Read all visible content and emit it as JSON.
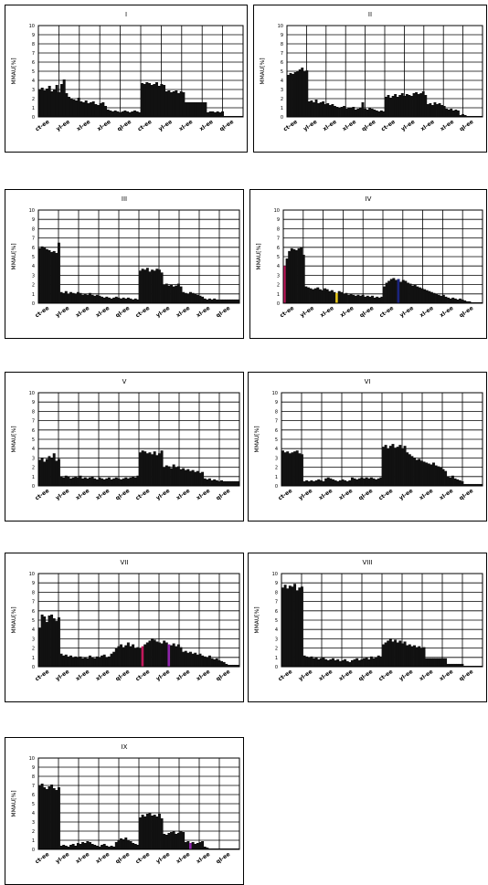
{
  "chart_data": [
    {
      "type": "bar",
      "title": "I",
      "ylabel": "MMAU[%]",
      "ylim": [
        0,
        10
      ],
      "yticks": [
        "10",
        "9",
        "8",
        "7",
        "6",
        "5",
        "4",
        "3",
        "2",
        "1",
        "0"
      ],
      "x_tick_labels": [
        "ct-ee",
        "yl-ee",
        "xl-ee",
        "xl-ee",
        "ql-ee",
        "ct-ee",
        "yl-ee",
        "xl-ee",
        "xl-ee",
        "ql-ee"
      ],
      "series": [
        {
          "values": [
            3.0,
            3.2,
            2.9,
            3.1,
            3.4,
            2.8,
            3.0,
            3.5,
            2.7,
            3.6,
            4.1,
            2.6,
            2.2,
            2.0,
            1.9,
            1.8,
            2.1,
            1.7,
            1.6,
            1.8,
            1.5,
            1.6,
            1.7,
            1.4,
            1.3,
            1.5,
            1.6,
            1.2,
            0.8,
            0.7,
            0.6,
            0.7,
            0.6,
            0.5,
            0.6,
            0.7,
            0.6,
            0.5,
            0.6,
            0.7,
            0.6,
            0.5
          ]
        },
        {
          "values": [
            3.7,
            3.6,
            3.8,
            3.7,
            3.5,
            3.6,
            3.8,
            3.4,
            3.6,
            3.5,
            2.8,
            2.9,
            2.7,
            2.8,
            2.9,
            2.6,
            2.8,
            2.7,
            1.6,
            1.6,
            1.6,
            1.6,
            1.6,
            1.6,
            1.6,
            1.6,
            1.6,
            0.5,
            0.6,
            0.6,
            0.5,
            0.6,
            0.5,
            0.6,
            0.1,
            0.1,
            0.1,
            0.1,
            0.1,
            0.1,
            0.1,
            0.1
          ]
        }
      ]
    },
    {
      "type": "bar",
      "title": "II",
      "ylabel": "MMAU[%]",
      "ylim": [
        0,
        10
      ],
      "yticks": [
        "10",
        "9",
        "8",
        "7",
        "6",
        "5",
        "4",
        "3",
        "2",
        "1",
        "0"
      ],
      "x_tick_labels": [
        "ct-ee",
        "yl-ee",
        "xl-ee",
        "xl-ee",
        "ql-ee",
        "ct-ee",
        "yl-ee",
        "xl-ee",
        "xl-ee",
        "ql-ee"
      ],
      "series": [
        {
          "values": [
            4.6,
            4.8,
            4.7,
            4.9,
            5.0,
            5.2,
            5.4,
            5.0,
            5.1,
            1.7,
            1.8,
            1.6,
            1.9,
            1.5,
            1.6,
            1.7,
            1.4,
            1.5,
            1.3,
            1.4,
            1.2,
            1.1,
            1.0,
            1.1,
            1.2,
            0.9,
            1.0,
            1.0,
            1.1,
            0.8,
            0.9,
            1.0,
            1.6,
            0.9,
            0.8,
            1.0,
            0.9,
            0.8,
            0.7,
            0.6,
            0.7,
            0.6
          ]
        },
        {
          "values": [
            2.2,
            2.4,
            2.1,
            2.3,
            2.5,
            2.2,
            2.4,
            2.6,
            2.3,
            2.5,
            2.4,
            2.3,
            2.6,
            2.7,
            2.5,
            2.6,
            2.8,
            2.4,
            1.4,
            1.5,
            1.3,
            1.6,
            1.4,
            1.5,
            1.3,
            1.2,
            0.9,
            0.8,
            0.9,
            0.7,
            0.8,
            0.7,
            0.2,
            0.3,
            0.2,
            0.1,
            0.1,
            0.1,
            0.1,
            0.1,
            0.1,
            0.1
          ]
        }
      ]
    },
    {
      "type": "bar",
      "title": "III",
      "ylabel": "MMAU[%]",
      "ylim": [
        0,
        10
      ],
      "yticks": [
        "10",
        "9",
        "8",
        "7",
        "6",
        "5",
        "4",
        "3",
        "2",
        "1",
        "0"
      ],
      "x_tick_labels": [
        "ct-ee",
        "yl-ee",
        "xl-ee",
        "xl-ee",
        "ql-ee",
        "ct-ee",
        "yl-ee",
        "xl-ee",
        "xl-ee",
        "ql-ee"
      ],
      "series": [
        {
          "values": [
            5.9,
            6.1,
            6.0,
            5.8,
            5.7,
            5.5,
            5.6,
            5.4,
            6.5,
            1.2,
            1.1,
            1.3,
            1.0,
            1.2,
            1.1,
            1.0,
            1.2,
            1.1,
            0.9,
            1.0,
            0.9,
            1.1,
            0.9,
            0.8,
            0.9,
            0.8,
            0.7,
            0.6,
            0.7,
            0.6,
            0.5,
            0.6,
            0.7,
            0.6,
            0.5,
            0.6,
            0.5,
            0.6,
            0.5,
            0.4,
            0.5,
            0.4
          ]
        },
        {
          "values": [
            3.5,
            3.7,
            3.6,
            3.8,
            3.4,
            3.6,
            3.5,
            3.7,
            3.6,
            3.3,
            2.0,
            2.1,
            1.9,
            2.0,
            1.8,
            1.9,
            2.1,
            1.8,
            1.2,
            1.1,
            1.0,
            1.2,
            1.1,
            1.0,
            0.9,
            0.8,
            0.7,
            0.5,
            0.4,
            0.5,
            0.4,
            0.5,
            0.4,
            0.4,
            0.4,
            0.4,
            0.4,
            0.4,
            0.4,
            0.4,
            0.4,
            0.4
          ]
        }
      ]
    },
    {
      "type": "bar",
      "title": "IV",
      "ylabel": "MMAU[%]",
      "ylim": [
        0,
        10
      ],
      "yticks": [
        "10",
        "9",
        "8",
        "7",
        "6",
        "5",
        "4",
        "3",
        "2",
        "1",
        "0"
      ],
      "x_tick_labels": [
        "ct-ee",
        "yl-ee",
        "xl-ee",
        "xl-ee",
        "ql-ee",
        "ct-ee",
        "yl-ee",
        "xl-ee",
        "xl-ee",
        "ql-ee"
      ],
      "series": [
        {
          "values": [
            4.0,
            4.8,
            5.6,
            5.9,
            5.8,
            5.7,
            5.9,
            6.0,
            5.2,
            1.8,
            1.7,
            1.6,
            1.5,
            1.6,
            1.7,
            1.5,
            1.4,
            1.6,
            1.5,
            1.3,
            1.4,
            1.2,
            1.1,
            1.3,
            1.2,
            1.0,
            1.1,
            0.9,
            1.0,
            0.9,
            0.8,
            0.9,
            0.8,
            0.9,
            0.7,
            0.8,
            0.7,
            0.8,
            0.6,
            0.7,
            0.6,
            0.7
          ]
        },
        {
          "values": [
            1.8,
            2.2,
            2.4,
            2.6,
            2.7,
            2.5,
            2.6,
            2.3,
            2.5,
            2.4,
            2.2,
            2.1,
            1.9,
            2.0,
            1.8,
            1.7,
            1.6,
            1.5,
            1.4,
            1.3,
            1.2,
            1.1,
            1.0,
            0.9,
            0.8,
            0.9,
            0.7,
            0.6,
            0.5,
            0.6,
            0.5,
            0.4,
            0.5,
            0.4,
            0.3,
            0.2,
            0.2,
            0.1,
            0.1,
            0.1,
            0.1,
            0.1
          ]
        }
      ],
      "highlight_bars": [
        {
          "series": 0,
          "index": 0,
          "color": "#c2185b"
        },
        {
          "series": 0,
          "index": 22,
          "color": "#e6c619"
        },
        {
          "series": 1,
          "index": 6,
          "color": "#1a237e"
        }
      ]
    },
    {
      "type": "bar",
      "title": "V",
      "ylabel": "MMAU[%]",
      "ylim": [
        0,
        10
      ],
      "yticks": [
        "10",
        "9",
        "8",
        "7",
        "6",
        "5",
        "4",
        "3",
        "2",
        "1",
        "0"
      ],
      "x_tick_labels": [
        "ct-ee",
        "yl-ee",
        "xl-ee",
        "xl-ee",
        "ql-ee",
        "ct-ee",
        "yl-ee",
        "xl-ee",
        "xl-ee",
        "ql-ee"
      ],
      "series": [
        {
          "values": [
            2.8,
            3.0,
            2.6,
            2.9,
            3.2,
            3.0,
            3.5,
            2.7,
            2.9,
            1.0,
            0.9,
            1.1,
            1.0,
            0.8,
            0.9,
            1.0,
            0.9,
            1.1,
            0.8,
            0.9,
            0.8,
            0.9,
            1.0,
            0.8,
            0.7,
            0.9,
            0.8,
            0.7,
            0.8,
            0.9,
            0.7,
            0.8,
            0.9,
            0.8,
            0.7,
            0.8,
            0.9,
            0.8,
            0.9,
            1.0,
            0.9,
            1.1
          ]
        },
        {
          "values": [
            3.6,
            3.8,
            3.7,
            3.5,
            3.6,
            3.4,
            3.7,
            3.3,
            3.5,
            3.8,
            2.0,
            2.2,
            2.1,
            1.9,
            2.3,
            2.0,
            2.1,
            1.8,
            1.9,
            1.7,
            1.8,
            1.6,
            1.7,
            1.5,
            1.6,
            1.4,
            1.5,
            0.8,
            0.7,
            0.8,
            0.6,
            0.7,
            0.6,
            0.5,
            0.6,
            0.5,
            0.5,
            0.5,
            0.5,
            0.5,
            0.5,
            0.5
          ]
        }
      ]
    },
    {
      "type": "bar",
      "title": "VI",
      "ylabel": "MMAU[%]",
      "ylim": [
        0,
        10
      ],
      "yticks": [
        "10",
        "9",
        "8",
        "7",
        "6",
        "5",
        "4",
        "3",
        "2",
        "1",
        "0"
      ],
      "x_tick_labels": [
        "ct-ee",
        "yl-ee",
        "xl-ee",
        "xl-ee",
        "ql-ee",
        "ct-ee",
        "yl-ee",
        "xl-ee",
        "xl-ee",
        "ql-ee"
      ],
      "series": [
        {
          "values": [
            3.8,
            3.6,
            3.7,
            3.5,
            3.6,
            3.7,
            3.8,
            3.5,
            3.4,
            0.5,
            0.6,
            0.5,
            0.6,
            0.5,
            0.6,
            0.7,
            0.6,
            0.5,
            0.8,
            0.9,
            0.8,
            0.7,
            0.6,
            0.5,
            0.6,
            0.7,
            0.6,
            0.5,
            0.6,
            0.9,
            0.8,
            0.7,
            0.8,
            0.9,
            0.8,
            0.9,
            0.8,
            0.9,
            0.8,
            0.7,
            0.8,
            0.9
          ]
        },
        {
          "values": [
            4.2,
            4.4,
            4.0,
            4.3,
            4.5,
            4.1,
            4.2,
            4.4,
            4.0,
            4.3,
            3.6,
            3.4,
            3.2,
            3.0,
            2.8,
            2.9,
            2.7,
            2.6,
            2.5,
            2.4,
            2.3,
            2.5,
            2.2,
            2.1,
            2.0,
            1.8,
            1.6,
            1.0,
            0.9,
            1.1,
            0.8,
            0.7,
            0.6,
            0.5,
            0.2,
            0.2,
            0.2,
            0.2,
            0.2,
            0.2,
            0.2,
            0.2
          ]
        }
      ]
    },
    {
      "type": "bar",
      "title": "VII",
      "ylabel": "MMAU[%]",
      "ylim": [
        0,
        10
      ],
      "yticks": [
        "10",
        "9",
        "8",
        "7",
        "6",
        "5",
        "4",
        "3",
        "2",
        "1",
        "0"
      ],
      "x_tick_labels": [
        "ct-ee",
        "yl-ee",
        "xl-ee",
        "xl-ee",
        "ql-ee",
        "ct-ee",
        "yl-ee",
        "xl-ee",
        "xl-ee",
        "ql-ee"
      ],
      "series": [
        {
          "values": [
            4.2,
            5.6,
            5.4,
            4.8,
            5.5,
            5.6,
            5.2,
            4.9,
            5.3,
            1.4,
            1.2,
            1.3,
            1.1,
            1.2,
            1.0,
            1.1,
            1.0,
            1.1,
            0.9,
            1.0,
            0.9,
            1.2,
            1.0,
            0.9,
            1.1,
            1.0,
            1.2,
            1.3,
            1.0,
            1.1,
            1.4,
            1.6,
            2.0,
            2.2,
            2.4,
            2.1,
            2.3,
            2.6,
            2.2,
            2.4,
            2.0,
            2.1
          ]
        },
        {
          "values": [
            2.0,
            2.2,
            2.4,
            2.6,
            2.8,
            3.0,
            2.9,
            2.7,
            2.6,
            2.5,
            2.8,
            2.6,
            2.4,
            2.3,
            2.5,
            2.2,
            2.4,
            2.1,
            1.6,
            1.7,
            1.5,
            1.6,
            1.4,
            1.5,
            1.3,
            1.4,
            1.2,
            1.1,
            1.0,
            1.2,
            0.9,
            0.8,
            0.9,
            0.7,
            0.6,
            0.5,
            0.3,
            0.2,
            0.2,
            0.2,
            0.2,
            0.2
          ]
        }
      ],
      "highlight_bars": [
        {
          "series": 1,
          "index": 1,
          "color": "#c2185b"
        },
        {
          "series": 1,
          "index": 12,
          "color": "#8e24aa"
        }
      ]
    },
    {
      "type": "bar",
      "title": "VIII",
      "ylabel": "MMAU[%]",
      "ylim": [
        0,
        10
      ],
      "yticks": [
        "10",
        "9",
        "8",
        "7",
        "6",
        "5",
        "4",
        "3",
        "2",
        "1",
        "0"
      ],
      "x_tick_labels": [
        "ct-ee",
        "yl-ee",
        "xl-ee",
        "xl-ee",
        "ql-ee",
        "ct-ee",
        "yl-ee",
        "xl-ee",
        "xl-ee",
        "ql-ee"
      ],
      "series": [
        {
          "values": [
            8.5,
            8.8,
            8.4,
            8.7,
            8.6,
            8.9,
            8.2,
            8.5,
            8.6,
            1.2,
            1.1,
            1.0,
            1.1,
            0.9,
            1.0,
            0.8,
            0.9,
            1.0,
            0.8,
            0.7,
            0.8,
            0.9,
            0.7,
            0.8,
            0.6,
            0.7,
            0.8,
            0.6,
            0.5,
            0.7,
            0.8,
            0.9,
            0.7,
            0.8,
            0.9,
            1.0,
            0.8,
            1.1,
            0.9,
            1.0,
            1.2,
            1.1
          ]
        },
        {
          "values": [
            2.4,
            2.6,
            2.8,
            3.0,
            2.7,
            2.9,
            2.6,
            2.8,
            2.5,
            2.7,
            2.3,
            2.4,
            2.2,
            2.3,
            2.1,
            2.2,
            2.0,
            2.1,
            0.9,
            0.9,
            0.9,
            0.9,
            0.9,
            0.9,
            0.9,
            0.9,
            0.9,
            0.3,
            0.3,
            0.3,
            0.3,
            0.3,
            0.3,
            0.3,
            0.1,
            0.1,
            0.1,
            0.1,
            0.1,
            0.1,
            0.1,
            0.1
          ]
        }
      ]
    },
    {
      "type": "bar",
      "title": "IX",
      "ylabel": "MMAU[%]",
      "ylim": [
        0,
        10
      ],
      "yticks": [
        "10",
        "9",
        "8",
        "7",
        "6",
        "5",
        "4",
        "3",
        "2",
        "1",
        "0"
      ],
      "x_tick_labels": [
        "ct-ee",
        "yl-ee",
        "xl-ee",
        "xl-ee",
        "ql-ee",
        "ct-ee",
        "yl-ee",
        "xl-ee",
        "xl-ee",
        "ql-ee"
      ],
      "series": [
        {
          "values": [
            7.0,
            7.2,
            6.8,
            6.6,
            6.9,
            7.1,
            6.7,
            6.5,
            6.8,
            0.4,
            0.5,
            0.4,
            0.3,
            0.5,
            0.6,
            0.4,
            0.7,
            0.6,
            0.8,
            0.7,
            0.9,
            0.8,
            0.6,
            0.5,
            0.4,
            0.3,
            0.5,
            0.6,
            0.4,
            0.3,
            0.4,
            0.3,
            0.8,
            1.0,
            1.2,
            1.1,
            1.3,
            1.0,
            0.9,
            0.7,
            0.6,
            0.5
          ]
        },
        {
          "values": [
            3.5,
            3.8,
            3.6,
            3.9,
            4.0,
            3.7,
            3.8,
            3.6,
            3.9,
            3.4,
            1.7,
            1.6,
            1.8,
            1.9,
            2.0,
            1.7,
            1.8,
            2.0,
            1.9,
            0.8,
            0.9,
            0.7,
            0.8,
            0.6,
            0.7,
            0.8,
            0.9,
            0.3,
            0.2,
            0.1,
            0.1,
            0.1,
            0.1,
            0.1,
            0.1,
            0.1,
            0.1,
            0.1,
            0.1,
            0.1,
            0.1,
            0.1
          ]
        }
      ],
      "highlight_bars": [
        {
          "series": 1,
          "index": 21,
          "color": "#8e24aa"
        }
      ]
    }
  ]
}
